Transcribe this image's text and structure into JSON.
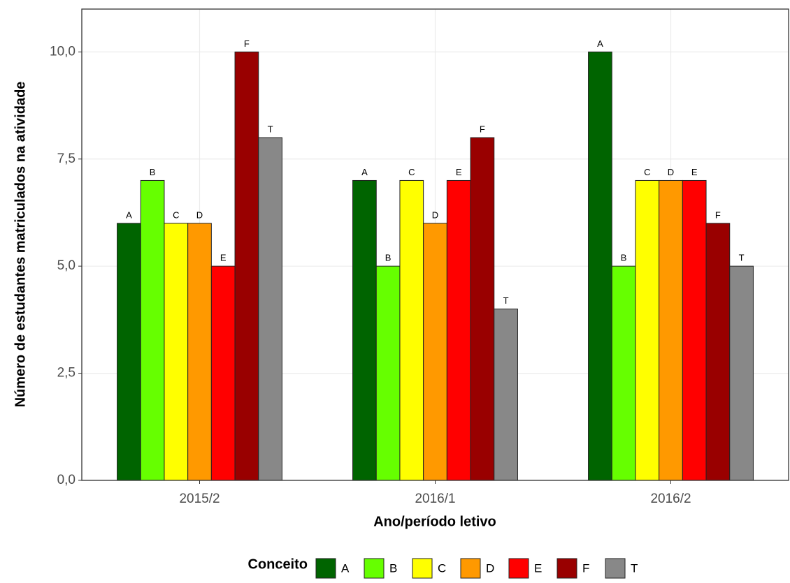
{
  "chart_data": {
    "type": "bar",
    "x_label": "Ano/período letivo",
    "y_label": "Número de estudantes matriculados na atividade",
    "legend_title": "Conceito",
    "categories": [
      "2015/2",
      "2016/1",
      "2016/2"
    ],
    "series": [
      {
        "name": "A",
        "color": "#006400",
        "values": [
          6,
          7,
          10
        ]
      },
      {
        "name": "B",
        "color": "#66ff00",
        "values": [
          7,
          5,
          5
        ]
      },
      {
        "name": "C",
        "color": "#ffff00",
        "values": [
          6,
          7,
          7
        ]
      },
      {
        "name": "D",
        "color": "#ff9900",
        "values": [
          6,
          6,
          7
        ]
      },
      {
        "name": "E",
        "color": "#ff0000",
        "values": [
          5,
          7,
          7
        ]
      },
      {
        "name": "F",
        "color": "#990000",
        "values": [
          10,
          8,
          6
        ]
      },
      {
        "name": "T",
        "color": "#888888",
        "values": [
          8,
          4,
          5
        ]
      }
    ],
    "ylim": [
      0,
      11
    ],
    "yticks": [
      {
        "value": 0,
        "label": "0,0"
      },
      {
        "value": 2.5,
        "label": "2,5"
      },
      {
        "value": 5,
        "label": "5,0"
      },
      {
        "value": 7.5,
        "label": "7,5"
      },
      {
        "value": 10,
        "label": "10,0"
      }
    ],
    "grid": true,
    "legend": "bottom"
  }
}
